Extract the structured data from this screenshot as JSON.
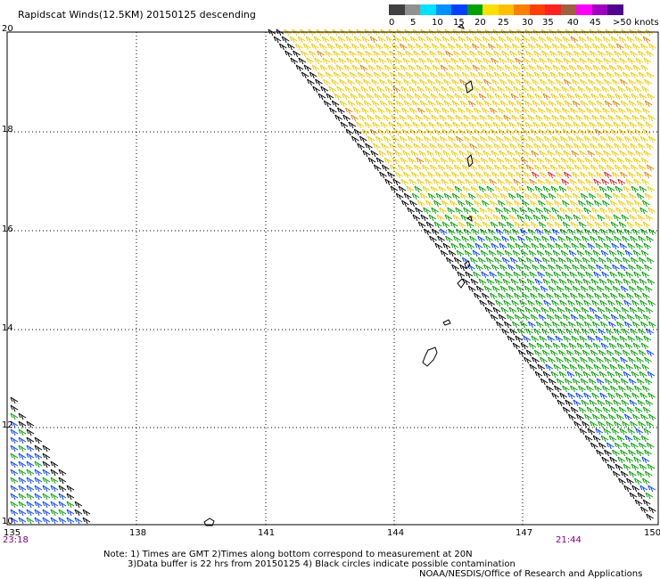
{
  "title": "Rapidscat Winds(12.5KM) 20150125 descending",
  "legend": {
    "labels": [
      "0",
      "5",
      "10",
      "15",
      "20",
      "25",
      "30",
      "35",
      "40",
      "45",
      ">50 knots"
    ],
    "colors": [
      "#404040",
      "#909090",
      "#00e0ff",
      "#0090ff",
      "#0050ff",
      "#00a000",
      "#ffe000",
      "#ffc000",
      "#ff8000",
      "#ff4000",
      "#ff2020",
      "#c01010",
      "#805030",
      "#ff00ff",
      "#c000c0",
      "#8000c0",
      "#500090"
    ]
  },
  "map": {
    "lat_labels": [
      "20",
      "18",
      "16",
      "14",
      "12",
      "10"
    ],
    "lon_labels": [
      "135",
      "138",
      "141",
      "144",
      "147",
      "150"
    ],
    "time_left": "23:18",
    "time_right": "21:44"
  },
  "notes": {
    "line1": "Note: 1) Times are GMT 2)Times along bottom correspond to measurement at 20N",
    "line2": "3)Data buffer is 22 hrs from 20150125 4) Black circles indicate possible contamination",
    "line3": "NOAA/NESDIS/Office of Research and Applications"
  }
}
